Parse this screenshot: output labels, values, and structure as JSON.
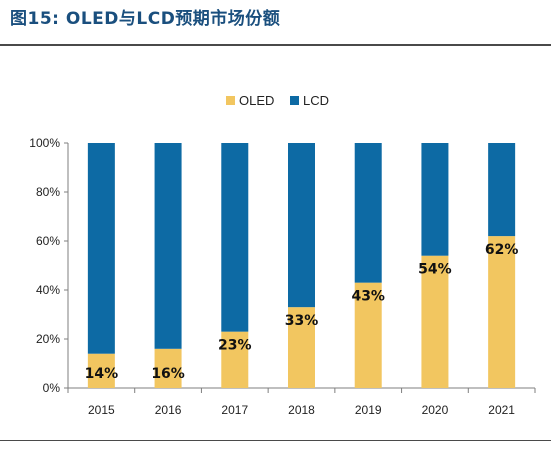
{
  "figure": {
    "title": "图15:  OLED与LCD预期市场份额"
  },
  "colors": {
    "oled": "#f2c660",
    "lcd": "#0d6aa4",
    "axis": "#7f7f7f",
    "title": "#1a4f7e"
  },
  "chart_data": {
    "type": "bar",
    "stacked": true,
    "categories": [
      "2015",
      "2016",
      "2017",
      "2018",
      "2019",
      "2020",
      "2021"
    ],
    "series": [
      {
        "name": "OLED",
        "values": [
          14,
          16,
          23,
          33,
          43,
          54,
          62
        ],
        "data_labels": [
          "14%",
          "16%",
          "23%",
          "33%",
          "43%",
          "54%",
          "62%"
        ]
      },
      {
        "name": "LCD",
        "values": [
          86,
          84,
          77,
          67,
          57,
          46,
          38
        ]
      }
    ],
    "ylim": [
      0,
      100
    ],
    "y_ticks": [
      0,
      20,
      40,
      60,
      80,
      100
    ],
    "y_tick_labels": [
      "0%",
      "20%",
      "40%",
      "60%",
      "80%",
      "100%"
    ],
    "legend_position": "top-center",
    "grid": false,
    "xlabel": "",
    "ylabel": ""
  }
}
